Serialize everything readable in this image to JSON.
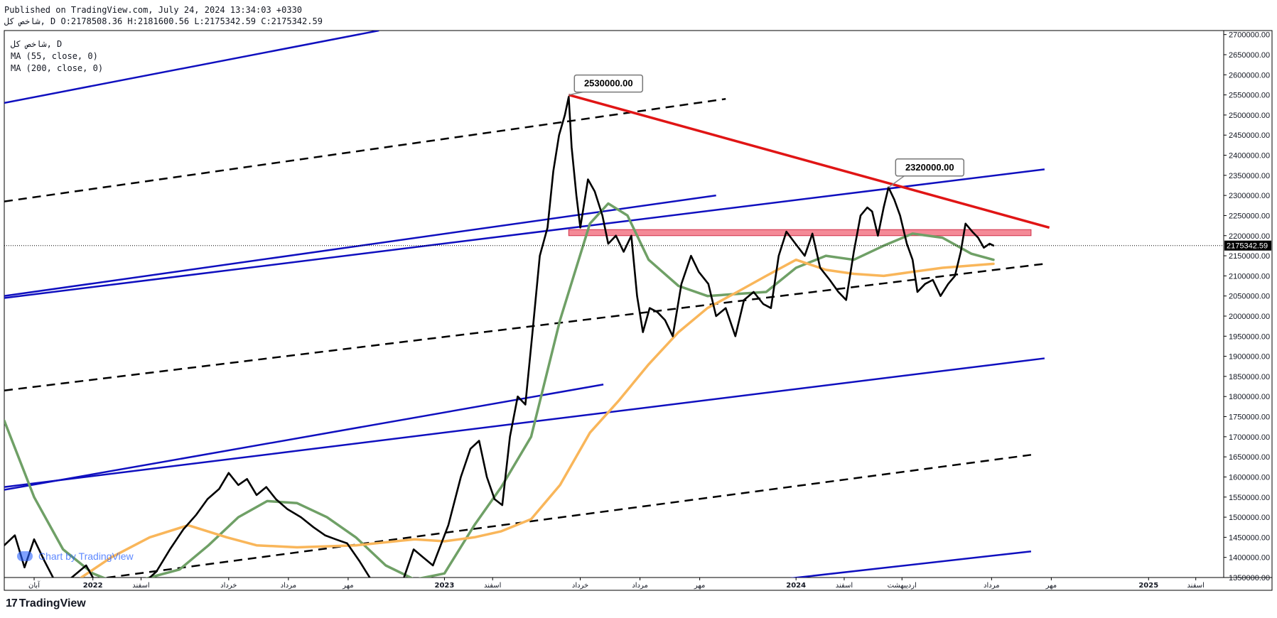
{
  "header": {
    "published": "Published on TradingView.com, July 24, 2024 13:34:03 +0330",
    "ohlc": "شاخص کل, D O:2178508.36 H:2181600.56 L:2175342.59 C:2175342.59"
  },
  "legend": {
    "symbol": "شاخص کل, D",
    "ma55": "MA (55, close, 0)",
    "ma200": "MA (200, close, 0)"
  },
  "watermark": "Chart by TradingView",
  "footer": {
    "logo_mark": "17",
    "brand": "TradingView"
  },
  "colors": {
    "price": "#000000",
    "ma55": "#6fa066",
    "ma200": "#f9b65a",
    "channel": "#0f0fbf",
    "trendline": "#e01515",
    "zone": "#f48a97",
    "last_price_bg": "#000000"
  },
  "chart_data": {
    "type": "line",
    "ylim": [
      1350000,
      2710000
    ],
    "xlim": [
      "2021-10-01",
      "2025-03-20"
    ],
    "y_ticks": [
      "2700000.00",
      "2650000.00",
      "2600000.00",
      "2550000.00",
      "2500000.00",
      "2450000.00",
      "2400000.00",
      "2350000.00",
      "2300000.00",
      "2250000.00",
      "2200000.00",
      "2150000.00",
      "2100000.00",
      "2050000.00",
      "2000000.00",
      "1950000.00",
      "1900000.00",
      "1850000.00",
      "1800000.00",
      "1750000.00",
      "1700000.00",
      "1650000.00",
      "1600000.00",
      "1550000.00",
      "1500000.00",
      "1450000.00",
      "1400000.00",
      "1350000.00"
    ],
    "x_ticks": [
      {
        "label": "آبان",
        "date": "2021-11-01"
      },
      {
        "label": "2022",
        "date": "2022-01-01"
      },
      {
        "label": "اسفند",
        "date": "2022-02-20"
      },
      {
        "label": "خرداد",
        "date": "2022-05-22"
      },
      {
        "label": "مرداد",
        "date": "2022-07-23"
      },
      {
        "label": "مهر",
        "date": "2022-09-23"
      },
      {
        "label": "2023",
        "date": "2023-01-01"
      },
      {
        "label": "اسفند",
        "date": "2023-02-20"
      },
      {
        "label": "خرداد",
        "date": "2023-05-22"
      },
      {
        "label": "مرداد",
        "date": "2023-07-23"
      },
      {
        "label": "مهر",
        "date": "2023-09-23"
      },
      {
        "label": "2024",
        "date": "2024-01-01"
      },
      {
        "label": "اسفند",
        "date": "2024-02-20"
      },
      {
        "label": "اردیبهشت",
        "date": "2024-04-20"
      },
      {
        "label": "مرداد",
        "date": "2024-07-22"
      },
      {
        "label": "مهر",
        "date": "2024-09-22"
      },
      {
        "label": "2025",
        "date": "2025-01-01"
      },
      {
        "label": "اسفند",
        "date": "2025-02-19"
      }
    ],
    "last_price": "2175342.59",
    "series": [
      {
        "name": "شاخص کل",
        "values": [
          [
            "2021-10-01",
            1430000
          ],
          [
            "2021-10-12",
            1455000
          ],
          [
            "2021-10-22",
            1375000
          ],
          [
            "2021-11-01",
            1445000
          ],
          [
            "2021-11-12",
            1390000
          ],
          [
            "2021-11-25",
            1330000
          ],
          [
            "2021-12-10",
            1350000
          ],
          [
            "2021-12-25",
            1380000
          ],
          [
            "2022-01-08",
            1320000
          ],
          [
            "2022-01-22",
            1335000
          ],
          [
            "2022-02-05",
            1310000
          ],
          [
            "2022-02-20",
            1330000
          ],
          [
            "2022-03-08",
            1365000
          ],
          [
            "2022-03-22",
            1420000
          ],
          [
            "2022-04-05",
            1470000
          ],
          [
            "2022-04-18",
            1505000
          ],
          [
            "2022-04-30",
            1545000
          ],
          [
            "2022-05-12",
            1570000
          ],
          [
            "2022-05-22",
            1610000
          ],
          [
            "2022-06-01",
            1580000
          ],
          [
            "2022-06-10",
            1595000
          ],
          [
            "2022-06-20",
            1555000
          ],
          [
            "2022-06-30",
            1575000
          ],
          [
            "2022-07-10",
            1545000
          ],
          [
            "2022-07-22",
            1520000
          ],
          [
            "2022-08-05",
            1500000
          ],
          [
            "2022-08-18",
            1475000
          ],
          [
            "2022-08-30",
            1455000
          ],
          [
            "2022-09-10",
            1445000
          ],
          [
            "2022-09-22",
            1435000
          ],
          [
            "2022-10-05",
            1390000
          ],
          [
            "2022-10-18",
            1340000
          ],
          [
            "2022-11-05",
            1320000
          ],
          [
            "2022-11-20",
            1350000
          ],
          [
            "2022-11-30",
            1420000
          ],
          [
            "2022-12-10",
            1400000
          ],
          [
            "2022-12-20",
            1380000
          ],
          [
            "2023-01-05",
            1480000
          ],
          [
            "2023-01-18",
            1600000
          ],
          [
            "2023-01-28",
            1670000
          ],
          [
            "2023-02-06",
            1690000
          ],
          [
            "2023-02-14",
            1600000
          ],
          [
            "2023-02-22",
            1545000
          ],
          [
            "2023-03-02",
            1530000
          ],
          [
            "2023-03-10",
            1700000
          ],
          [
            "2023-03-18",
            1800000
          ],
          [
            "2023-03-26",
            1780000
          ],
          [
            "2023-04-02",
            1950000
          ],
          [
            "2023-04-10",
            2150000
          ],
          [
            "2023-04-18",
            2220000
          ],
          [
            "2023-04-24",
            2360000
          ],
          [
            "2023-04-30",
            2450000
          ],
          [
            "2023-05-06",
            2500000
          ],
          [
            "2023-05-10",
            2545000
          ],
          [
            "2023-05-13",
            2420000
          ],
          [
            "2023-05-18",
            2300000
          ],
          [
            "2023-05-22",
            2220000
          ],
          [
            "2023-05-30",
            2340000
          ],
          [
            "2023-06-06",
            2310000
          ],
          [
            "2023-06-14",
            2250000
          ],
          [
            "2023-06-20",
            2180000
          ],
          [
            "2023-06-28",
            2200000
          ],
          [
            "2023-07-06",
            2160000
          ],
          [
            "2023-07-14",
            2200000
          ],
          [
            "2023-07-20",
            2050000
          ],
          [
            "2023-07-26",
            1960000
          ],
          [
            "2023-08-02",
            2020000
          ],
          [
            "2023-08-10",
            2010000
          ],
          [
            "2023-08-18",
            1990000
          ],
          [
            "2023-08-26",
            1950000
          ],
          [
            "2023-09-04",
            2080000
          ],
          [
            "2023-09-14",
            2150000
          ],
          [
            "2023-09-22",
            2110000
          ],
          [
            "2023-10-02",
            2080000
          ],
          [
            "2023-10-10",
            2000000
          ],
          [
            "2023-10-20",
            2020000
          ],
          [
            "2023-10-30",
            1950000
          ],
          [
            "2023-11-08",
            2040000
          ],
          [
            "2023-11-18",
            2060000
          ],
          [
            "2023-11-28",
            2030000
          ],
          [
            "2023-12-06",
            2020000
          ],
          [
            "2023-12-14",
            2150000
          ],
          [
            "2023-12-22",
            2210000
          ],
          [
            "2024-01-02",
            2175000
          ],
          [
            "2024-01-10",
            2150000
          ],
          [
            "2024-01-18",
            2205000
          ],
          [
            "2024-01-26",
            2120000
          ],
          [
            "2024-02-05",
            2090000
          ],
          [
            "2024-02-14",
            2060000
          ],
          [
            "2024-02-22",
            2040000
          ],
          [
            "2024-03-01",
            2160000
          ],
          [
            "2024-03-08",
            2250000
          ],
          [
            "2024-03-15",
            2270000
          ],
          [
            "2024-03-20",
            2260000
          ],
          [
            "2024-03-26",
            2200000
          ],
          [
            "2024-04-01",
            2270000
          ],
          [
            "2024-04-06",
            2320000
          ],
          [
            "2024-04-12",
            2290000
          ],
          [
            "2024-04-18",
            2250000
          ],
          [
            "2024-04-25",
            2180000
          ],
          [
            "2024-05-01",
            2140000
          ],
          [
            "2024-05-06",
            2060000
          ],
          [
            "2024-05-14",
            2080000
          ],
          [
            "2024-05-22",
            2090000
          ],
          [
            "2024-05-30",
            2050000
          ],
          [
            "2024-06-07",
            2080000
          ],
          [
            "2024-06-14",
            2100000
          ],
          [
            "2024-06-20",
            2160000
          ],
          [
            "2024-06-25",
            2230000
          ],
          [
            "2024-07-02",
            2210000
          ],
          [
            "2024-07-08",
            2195000
          ],
          [
            "2024-07-14",
            2170000
          ],
          [
            "2024-07-20",
            2180000
          ],
          [
            "2024-07-24",
            2175342.59
          ]
        ]
      },
      {
        "name": "MA (55, close, 0)",
        "values": [
          [
            "2021-10-01",
            1740000
          ],
          [
            "2021-11-01",
            1550000
          ],
          [
            "2021-12-01",
            1420000
          ],
          [
            "2022-01-01",
            1360000
          ],
          [
            "2022-02-01",
            1330000
          ],
          [
            "2022-03-01",
            1350000
          ],
          [
            "2022-04-01",
            1370000
          ],
          [
            "2022-05-01",
            1430000
          ],
          [
            "2022-06-01",
            1500000
          ],
          [
            "2022-07-01",
            1540000
          ],
          [
            "2022-08-01",
            1535000
          ],
          [
            "2022-09-01",
            1500000
          ],
          [
            "2022-10-01",
            1450000
          ],
          [
            "2022-11-01",
            1380000
          ],
          [
            "2022-12-01",
            1345000
          ],
          [
            "2023-01-01",
            1360000
          ],
          [
            "2023-02-01",
            1480000
          ],
          [
            "2023-03-01",
            1575000
          ],
          [
            "2023-04-01",
            1700000
          ],
          [
            "2023-05-01",
            1990000
          ],
          [
            "2023-06-01",
            2230000
          ],
          [
            "2023-06-20",
            2280000
          ],
          [
            "2023-07-10",
            2250000
          ],
          [
            "2023-08-01",
            2140000
          ],
          [
            "2023-09-01",
            2075000
          ],
          [
            "2023-10-01",
            2050000
          ],
          [
            "2023-11-01",
            2055000
          ],
          [
            "2023-12-01",
            2060000
          ],
          [
            "2024-01-01",
            2120000
          ],
          [
            "2024-02-01",
            2150000
          ],
          [
            "2024-03-01",
            2140000
          ],
          [
            "2024-04-01",
            2175000
          ],
          [
            "2024-05-01",
            2205000
          ],
          [
            "2024-06-01",
            2195000
          ],
          [
            "2024-07-01",
            2155000
          ],
          [
            "2024-07-24",
            2140000
          ]
        ]
      },
      {
        "name": "MA (200, close, 0)",
        "values": [
          [
            "2021-12-20",
            1350000
          ],
          [
            "2022-01-20",
            1400000
          ],
          [
            "2022-03-01",
            1450000
          ],
          [
            "2022-04-10",
            1480000
          ],
          [
            "2022-05-20",
            1450000
          ],
          [
            "2022-06-20",
            1430000
          ],
          [
            "2022-08-01",
            1425000
          ],
          [
            "2022-10-01",
            1430000
          ],
          [
            "2022-12-01",
            1445000
          ],
          [
            "2023-01-01",
            1440000
          ],
          [
            "2023-02-01",
            1450000
          ],
          [
            "2023-03-01",
            1465000
          ],
          [
            "2023-04-01",
            1495000
          ],
          [
            "2023-05-01",
            1580000
          ],
          [
            "2023-06-01",
            1710000
          ],
          [
            "2023-07-01",
            1790000
          ],
          [
            "2023-08-01",
            1880000
          ],
          [
            "2023-09-01",
            1960000
          ],
          [
            "2023-10-01",
            2020000
          ],
          [
            "2023-11-01",
            2060000
          ],
          [
            "2023-12-01",
            2100000
          ],
          [
            "2024-01-01",
            2140000
          ],
          [
            "2024-02-01",
            2115000
          ],
          [
            "2024-03-01",
            2105000
          ],
          [
            "2024-04-01",
            2100000
          ],
          [
            "2024-05-01",
            2110000
          ],
          [
            "2024-06-01",
            2120000
          ],
          [
            "2024-07-24",
            2130000
          ]
        ]
      }
    ],
    "drawings": [
      {
        "kind": "solid",
        "color": "channel",
        "from": [
          "2021-10-01",
          2530000
        ],
        "to": [
          "2022-10-25",
          2710000
        ]
      },
      {
        "kind": "solid",
        "color": "channel",
        "from": [
          "2021-10-01",
          2050000
        ],
        "to": [
          "2023-10-10",
          2300000
        ]
      },
      {
        "kind": "solid",
        "color": "channel",
        "from": [
          "2021-10-01",
          2045000
        ],
        "to": [
          "2024-09-15",
          2365000
        ]
      },
      {
        "kind": "solid",
        "color": "channel",
        "from": [
          "2021-10-01",
          1575000
        ],
        "to": [
          "2024-09-15",
          1895000
        ]
      },
      {
        "kind": "solid",
        "color": "channel",
        "from": [
          "2021-10-01",
          1568000
        ],
        "to": [
          "2023-06-15",
          1830000
        ]
      },
      {
        "kind": "solid",
        "color": "channel",
        "from": [
          "2023-12-15",
          1345000
        ],
        "to": [
          "2024-09-01",
          1415000
        ]
      },
      {
        "kind": "dashed",
        "from": [
          "2021-10-01",
          2285000
        ],
        "to": [
          "2023-10-20",
          2540000
        ]
      },
      {
        "kind": "dashed",
        "from": [
          "2021-10-01",
          1815000
        ],
        "to": [
          "2024-09-15",
          2130000
        ]
      },
      {
        "kind": "dashed",
        "from": [
          "2022-01-01",
          1345000
        ],
        "to": [
          "2024-09-01",
          1655000
        ]
      },
      {
        "kind": "solid",
        "color": "trendline",
        "from": [
          "2023-05-10",
          2550000
        ],
        "to": [
          "2024-09-20",
          2220000
        ]
      }
    ],
    "zones": [
      {
        "from": [
          "2023-05-10",
          2215000
        ],
        "to": [
          "2024-09-01",
          2200000
        ]
      }
    ],
    "annotations": [
      {
        "label": "2530000.00",
        "at": [
          "2023-05-10",
          2550000
        ]
      },
      {
        "label": "2320000.00",
        "at": [
          "2024-04-06",
          2320000
        ]
      }
    ]
  }
}
